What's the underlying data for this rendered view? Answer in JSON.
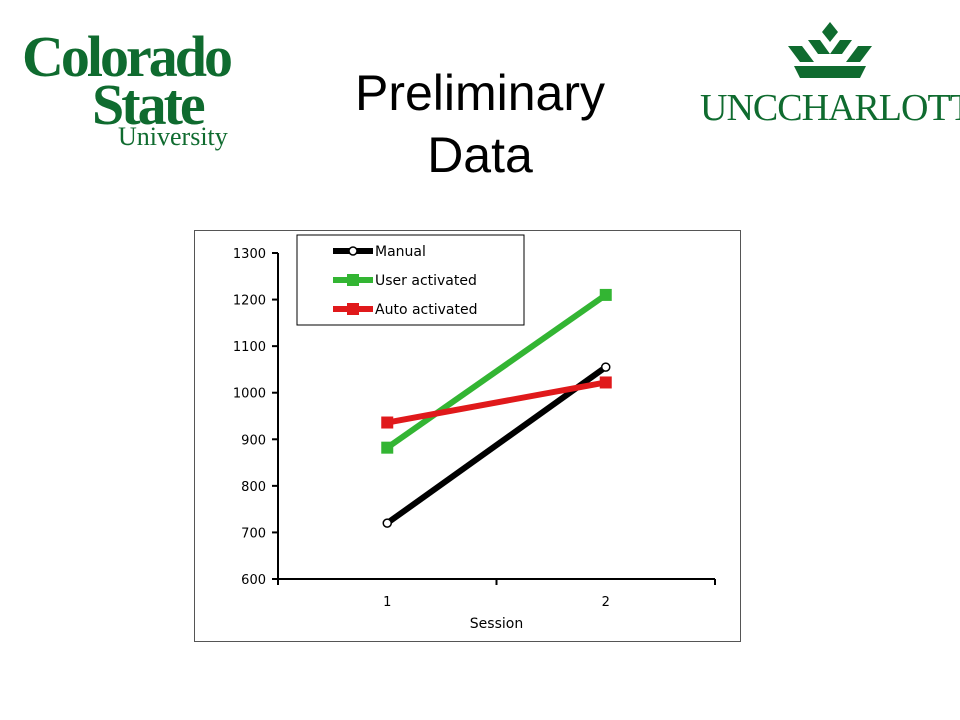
{
  "slide": {
    "title_line1": "Preliminary",
    "title_line2": "Data"
  },
  "logos": {
    "left": {
      "line1": "Colorado",
      "line2": "State",
      "line3": "University"
    },
    "right": {
      "wordmark": "UNCCHARLOTTE"
    }
  },
  "colors": {
    "logo_green": "#0f6b2f",
    "manual": "#000000",
    "user_activated": "#33b533",
    "auto_activated": "#e0191b"
  },
  "chart_data": {
    "type": "line",
    "title": "",
    "xlabel": "Session",
    "ylabel": "",
    "categories": [
      "1",
      "2"
    ],
    "ylim": [
      600,
      1300
    ],
    "yticks": [
      "600",
      "700",
      "800",
      "900",
      "1000",
      "1100",
      "1200",
      "1300"
    ],
    "grid": false,
    "legend_position": "top-left",
    "series": [
      {
        "name": "Manual",
        "values": [
          720,
          1055
        ],
        "color": "#000000",
        "marker": "circle"
      },
      {
        "name": "User activated",
        "values": [
          882,
          1210
        ],
        "color": "#33b533",
        "marker": "square"
      },
      {
        "name": "Auto activated",
        "values": [
          936,
          1022
        ],
        "color": "#e0191b",
        "marker": "square"
      }
    ]
  }
}
